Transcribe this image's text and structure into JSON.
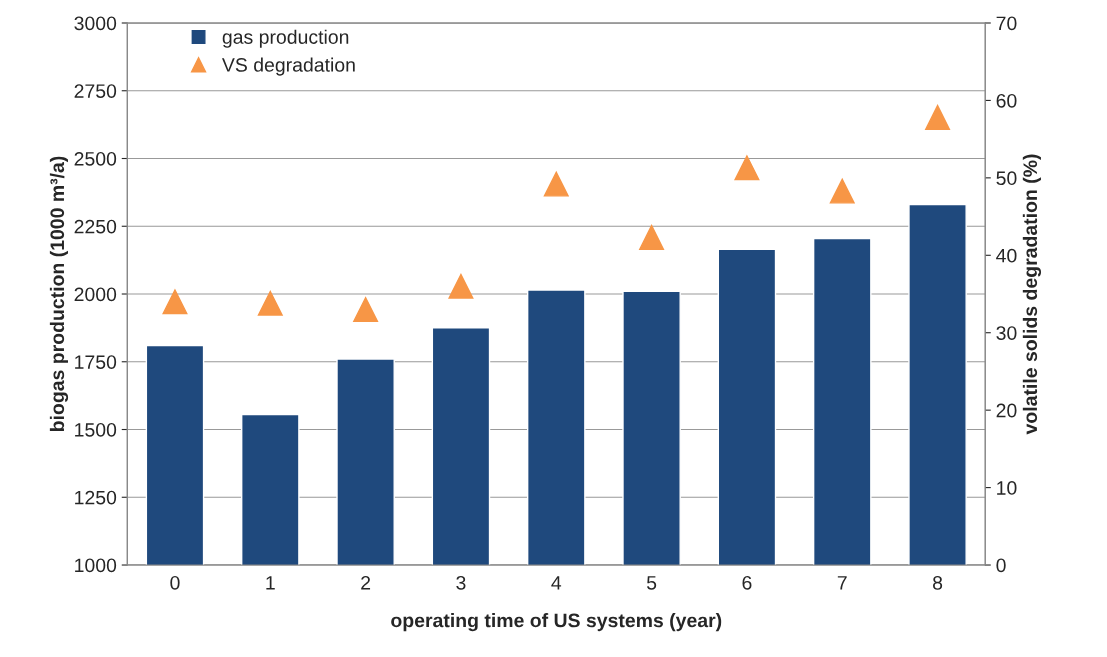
{
  "chart_data": {
    "type": "bar",
    "xlabel": "operating time of US systems (year)",
    "ylabel": "biogas production (1000 m³/a)",
    "y2label": "volatile solids degradation (%)",
    "categories": [
      "0",
      "1",
      "2",
      "3",
      "4",
      "5",
      "6",
      "7",
      "8"
    ],
    "series": [
      {
        "name": "gas production",
        "color": "#1f497d",
        "values": [
          1810,
          1555,
          1760,
          1875,
          2015,
          2010,
          2165,
          2205,
          2330
        ]
      },
      {
        "name": "VS degradation",
        "type": "scatter",
        "axis": "y2",
        "marker": "triangle",
        "color": "#f79646",
        "values": [
          34,
          33.8,
          33,
          36,
          49.2,
          42.3,
          51.3,
          48.3,
          57.8
        ]
      }
    ],
    "ylim": [
      1000,
      3000
    ],
    "yticks": [
      1000,
      1250,
      1500,
      1750,
      2000,
      2250,
      2500,
      2750,
      3000
    ],
    "y2lim": [
      0,
      70
    ],
    "y2ticks": [
      0,
      10,
      20,
      30,
      40,
      50,
      60,
      70
    ],
    "grid": "y",
    "legend": "top left"
  }
}
